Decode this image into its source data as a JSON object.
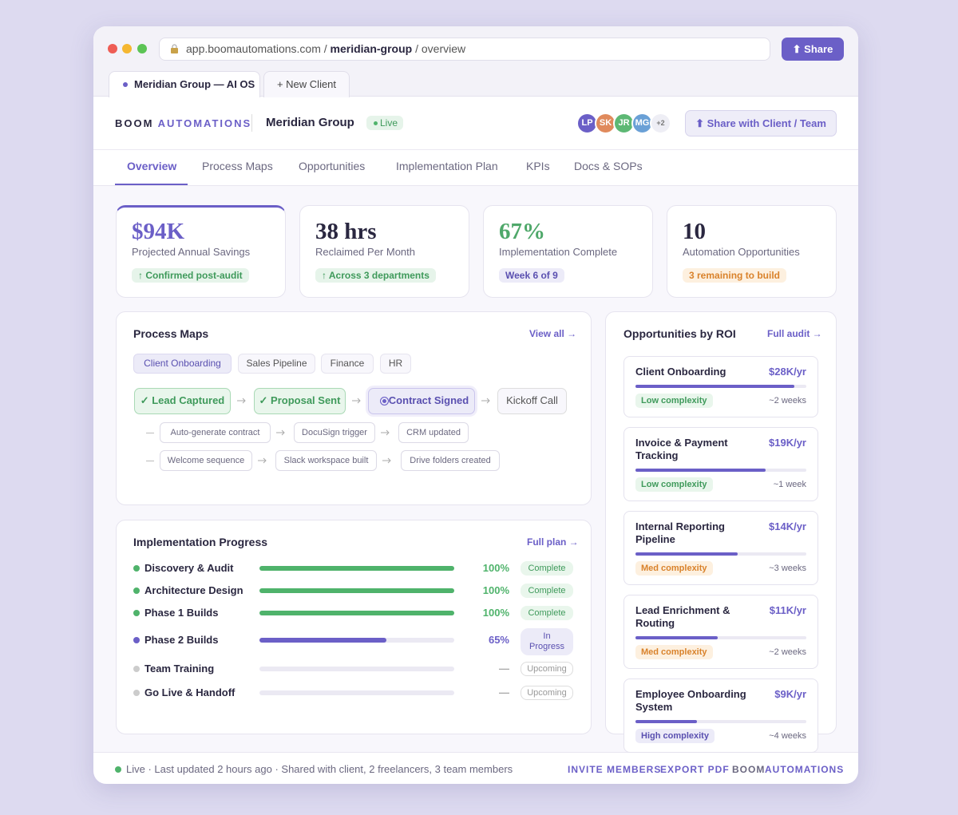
{
  "browser": {
    "url_prefix": "app.boomautomations.com /",
    "url_client": "meridian-group",
    "url_suffix": "/ overview",
    "share": "⬆ Share",
    "tabs": [
      "Meridian Group — AI OS",
      "+ New Client"
    ]
  },
  "header": {
    "brand_a": "BOOM",
    "brand_b": "AUTOMATIONS",
    "client": "Meridian Group",
    "status": "Live",
    "avatars": [
      "LP",
      "SK",
      "JR",
      "MG",
      "+2"
    ],
    "share_button": "⬆ Share with Client / Team"
  },
  "nav": [
    "Overview",
    "Process Maps",
    "Opportunities",
    "Implementation Plan",
    "KPIs",
    "Docs & SOPs"
  ],
  "kpis": [
    {
      "value": "$94K",
      "label": "Projected Annual Savings",
      "badge": "↑ Confirmed post-audit"
    },
    {
      "value": "38 hrs",
      "label": "Reclaimed Per Month",
      "badge": "↑ Across 3 departments"
    },
    {
      "value": "67%",
      "label": "Implementation Complete",
      "badge": "Week 6 of 9"
    },
    {
      "value": "10",
      "label": "Automation Opportunities",
      "badge": "3 remaining to build"
    }
  ],
  "process_maps": {
    "title": "Process Maps",
    "link": "View all →",
    "filters": [
      "Client Onboarding",
      "Sales Pipeline",
      "Finance",
      "HR"
    ],
    "steps": [
      "✓ Lead Captured",
      "✓ Proposal Sent",
      "Contract Signed",
      "Kickoff Call"
    ],
    "sub_rows": [
      [
        "Auto-generate contract",
        "DocuSign trigger",
        "CRM updated"
      ],
      [
        "Welcome sequence",
        "Slack workspace built",
        "Drive folders created"
      ]
    ]
  },
  "implementation": {
    "title": "Implementation Progress",
    "link": "Full plan →",
    "phases": [
      {
        "name": "Discovery & Audit",
        "percent": 100,
        "percent_label": "100%",
        "status": "Complete"
      },
      {
        "name": "Architecture Design",
        "percent": 100,
        "percent_label": "100%",
        "status": "Complete"
      },
      {
        "name": "Phase 1 Builds",
        "percent": 100,
        "percent_label": "100%",
        "status": "Complete"
      },
      {
        "name": "Phase 2 Builds",
        "percent": 65,
        "percent_label": "65%",
        "status": "In Progress"
      },
      {
        "name": "Team Training",
        "percent": 0,
        "percent_label": "—",
        "status": "Upcoming"
      },
      {
        "name": "Go Live & Handoff",
        "percent": 0,
        "percent_label": "—",
        "status": "Upcoming"
      }
    ]
  },
  "opportunities": {
    "title": "Opportunities by ROI",
    "link": "Full audit →",
    "items": [
      {
        "name": "Client Onboarding",
        "value": "$28K/yr",
        "progress": 93,
        "complexity": "Low complexity",
        "duration": "~2 weeks"
      },
      {
        "name": "Invoice & Payment Tracking",
        "value": "$19K/yr",
        "progress": 76,
        "complexity": "Low complexity",
        "duration": "~1 week"
      },
      {
        "name": "Internal Reporting Pipeline",
        "value": "$14K/yr",
        "progress": 60,
        "complexity": "Med complexity",
        "duration": "~3 weeks"
      },
      {
        "name": "Lead Enrichment & Routing",
        "value": "$11K/yr",
        "progress": 48,
        "complexity": "Med complexity",
        "duration": "~2 weeks"
      },
      {
        "name": "Employee Onboarding System",
        "value": "$9K/yr",
        "progress": 36,
        "complexity": "High complexity",
        "duration": "~4 weeks"
      }
    ]
  },
  "footer": {
    "status": "Live · Last updated 2 hours ago · Shared with client, 2 freelancers, 3 team members",
    "links": [
      "INVITE MEMBERS",
      "EXPORT PDF"
    ],
    "brand_a": "BOOM",
    "brand_b": "AUTOMATIONS"
  }
}
